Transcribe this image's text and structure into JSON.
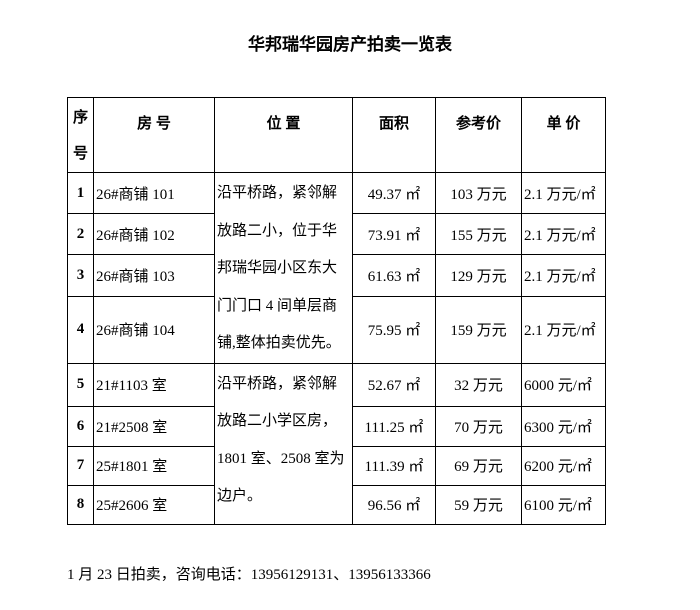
{
  "title": "华邦瑞华园房产拍卖一览表",
  "table": {
    "headers": [
      "序号",
      "房 号",
      "位 置",
      "面积",
      "参考价",
      "单 价"
    ],
    "rows": [
      [
        "1",
        "26#商铺 101",
        "49.37 ㎡",
        "103 万元",
        "2.1 万元/㎡"
      ],
      [
        "2",
        "26#商铺 102",
        "73.91 ㎡",
        "155 万元",
        "2.1 万元/㎡"
      ],
      [
        "3",
        "26#商铺 103",
        "61.63 ㎡",
        "129 万元",
        "2.1 万元/㎡"
      ],
      [
        "4",
        "26#商铺 104",
        "75.95 ㎡",
        "159 万元",
        "2.1 万元/㎡"
      ],
      [
        "5",
        "21#1103 室",
        "52.67 ㎡",
        "32 万元",
        "6000 元/㎡"
      ],
      [
        "6",
        "21#2508 室",
        "111.25 ㎡",
        "70 万元",
        "6300 元/㎡"
      ],
      [
        "7",
        "25#1801 室",
        "111.39 ㎡",
        "69 万元",
        "6200 元/㎡"
      ],
      [
        "8",
        "25#2606 室",
        "96.56 ㎡",
        "59 万元",
        "6100 元/㎡"
      ]
    ],
    "locations": [
      {
        "lines": [
          "沿平桥路，紧邻解",
          "放路二小，位于华",
          "邦瑞华园小区东大",
          "门门口 4 间单层商",
          "铺,整体拍卖优先。"
        ]
      },
      {
        "lines": [
          "沿平桥路，紧邻解",
          "放路二小学区房，",
          "1801 室、2508 室为",
          "边户。"
        ]
      }
    ]
  },
  "footer": "1 月 23 日拍卖，咨询电话：13956129131、13956133366"
}
